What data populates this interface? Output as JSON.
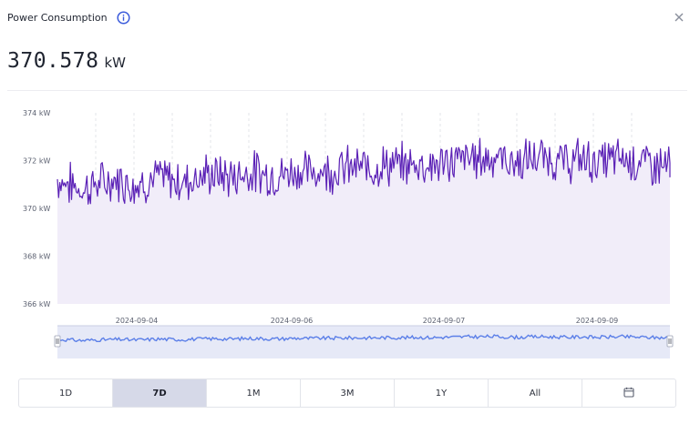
{
  "header": {
    "title": "Power Consumption",
    "info_icon": "info-circle-icon",
    "close_icon": "close-icon"
  },
  "reading": {
    "value": "370.578",
    "unit": "kW"
  },
  "colors": {
    "accent": "#5b21b6",
    "area_fill": "#f1edf9",
    "navigator_line": "#5b7fe8",
    "navigator_fill": "#e6e9f7",
    "active_button": "#d6d9e8",
    "info_icon": "#3b5bdb"
  },
  "chart_data": {
    "type": "area",
    "ylim": [
      366,
      374
    ],
    "y_ticks": [
      "374 kW",
      "372 kW",
      "370 kW",
      "368 kW",
      "366 kW"
    ],
    "x_tick_labels": [
      "2024-09-04",
      "2024-09-06",
      "2024-09-07",
      "2024-09-09"
    ],
    "grid": "vertical dashed lines",
    "series": [
      {
        "values": [
          371.2,
          371.0,
          370.8,
          371.0,
          371.1,
          371.2,
          371.0,
          371.1,
          371.3,
          371.2,
          371.1,
          371.3,
          371.4,
          371.4,
          371.3,
          371.5,
          371.5,
          371.4,
          371.4,
          371.6,
          371.5,
          371.6,
          371.6,
          371.7,
          371.7,
          371.7,
          371.8,
          371.8,
          371.8,
          371.9,
          371.8,
          371.9,
          372.0,
          372.1,
          372.1,
          372.2,
          372.0,
          371.9,
          372.1,
          372.1,
          372.0,
          371.9,
          372.1,
          371.9,
          372.0,
          372.1,
          372.0,
          371.9,
          371.8,
          371.8
        ],
        "min_observed": 369.1,
        "max_observed": 373.6
      }
    ]
  },
  "range_buttons": {
    "b1": "1D",
    "b2": "7D",
    "b3": "1M",
    "b4": "3M",
    "b5": "1Y",
    "b6": "All",
    "calendar_icon": "calendar-icon",
    "selected": "7D"
  }
}
